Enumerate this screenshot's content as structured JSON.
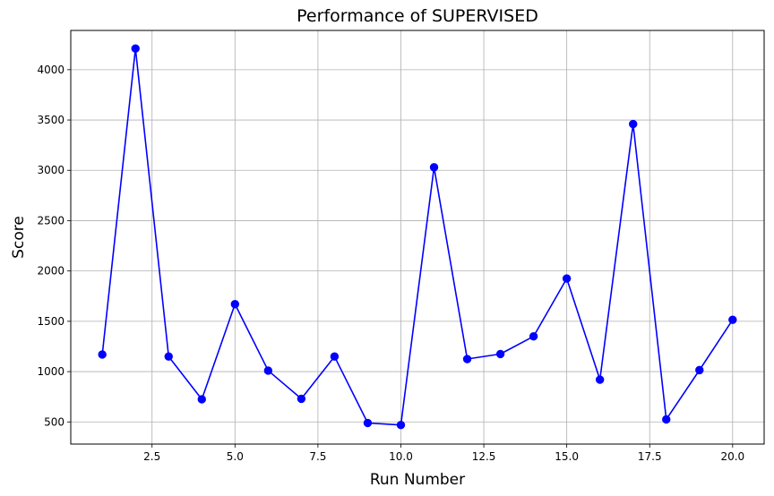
{
  "colors": {
    "series": "#0000ff",
    "grid": "#b0b0b0",
    "axis": "#000000",
    "background": "#ffffff"
  },
  "chart_data": {
    "type": "line",
    "title": "Performance of SUPERVISED",
    "xlabel": "Run Number",
    "ylabel": "Score",
    "xlim": [
      0.05,
      20.95
    ],
    "ylim": [
      280,
      4390
    ],
    "x_ticks": [
      2.5,
      5.0,
      7.5,
      10.0,
      12.5,
      15.0,
      17.5,
      20.0
    ],
    "x_tick_labels": [
      "2.5",
      "5.0",
      "7.5",
      "10.0",
      "12.5",
      "15.0",
      "17.5",
      "20.0"
    ],
    "y_ticks": [
      500,
      1000,
      1500,
      2000,
      2500,
      3000,
      3500,
      4000
    ],
    "y_tick_labels": [
      "500",
      "1000",
      "1500",
      "2000",
      "2500",
      "3000",
      "3500",
      "4000"
    ],
    "grid": true,
    "marker": "circle",
    "series": [
      {
        "x": [
          1,
          2,
          3,
          4,
          5,
          6,
          7,
          8,
          9,
          10,
          11,
          12,
          13,
          14,
          15,
          16,
          17,
          18,
          19,
          20
        ],
        "values": [
          1170,
          4210,
          1150,
          725,
          1670,
          1010,
          730,
          1150,
          490,
          470,
          3030,
          1125,
          1175,
          1350,
          1925,
          920,
          3460,
          525,
          1015,
          1515
        ]
      }
    ]
  }
}
